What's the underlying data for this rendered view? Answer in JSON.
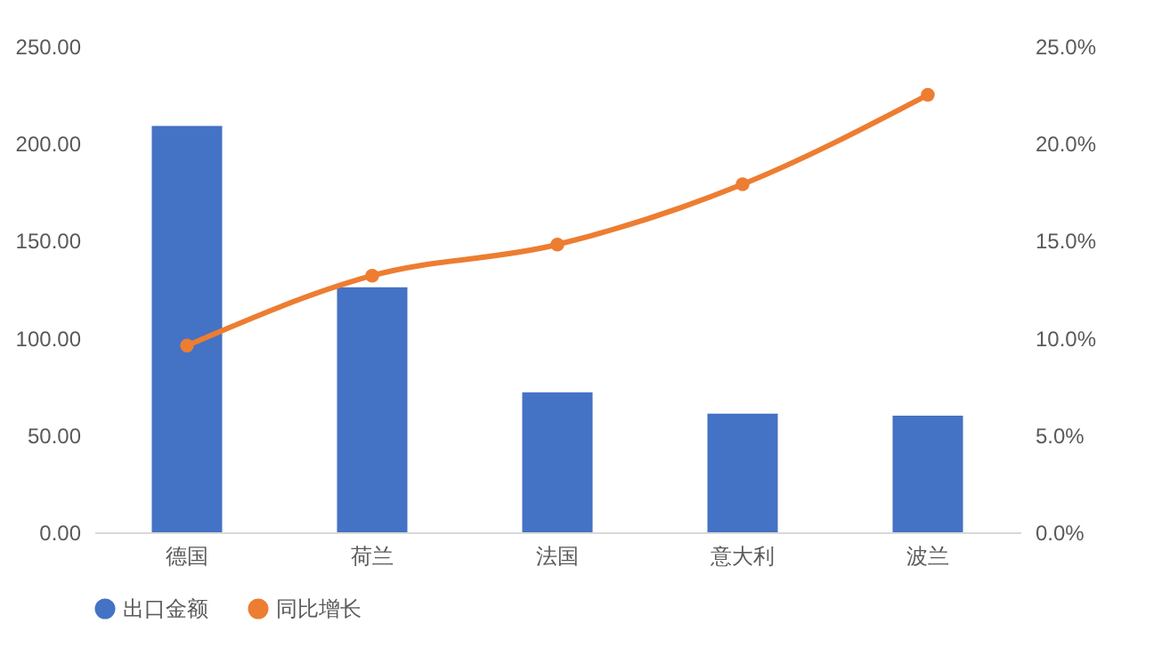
{
  "chart_data": {
    "type": "bar",
    "categories": [
      "德国",
      "荷兰",
      "法国",
      "意大利",
      "波兰"
    ],
    "series": [
      {
        "name": "出口金额",
        "color": "#4472c4",
        "values": [
          209,
          126,
          72,
          61,
          60
        ]
      },
      {
        "name": "同比增长",
        "color": "#ed7d31",
        "type": "line",
        "axis": "y2",
        "values": [
          9.6,
          13.2,
          14.8,
          17.9,
          22.5
        ]
      }
    ],
    "ylim": [
      0,
      250
    ],
    "yticks": [
      {
        "value": 0,
        "label": "0.00"
      },
      {
        "value": 50,
        "label": "50.00"
      },
      {
        "value": 100,
        "label": "100.00"
      },
      {
        "value": 150,
        "label": "150.00"
      },
      {
        "value": 200,
        "label": "200.00"
      },
      {
        "value": 250,
        "label": "250.00"
      }
    ],
    "y2lim": [
      0,
      25
    ],
    "y2ticks": [
      {
        "value": 0,
        "label": "0.0%"
      },
      {
        "value": 5,
        "label": "5.0%"
      },
      {
        "value": 10,
        "label": "10.0%"
      },
      {
        "value": 15,
        "label": "15.0%"
      },
      {
        "value": 20,
        "label": "20.0%"
      },
      {
        "value": 25,
        "label": "25.0%"
      }
    ],
    "legend": "bottom",
    "marker": "circle"
  }
}
